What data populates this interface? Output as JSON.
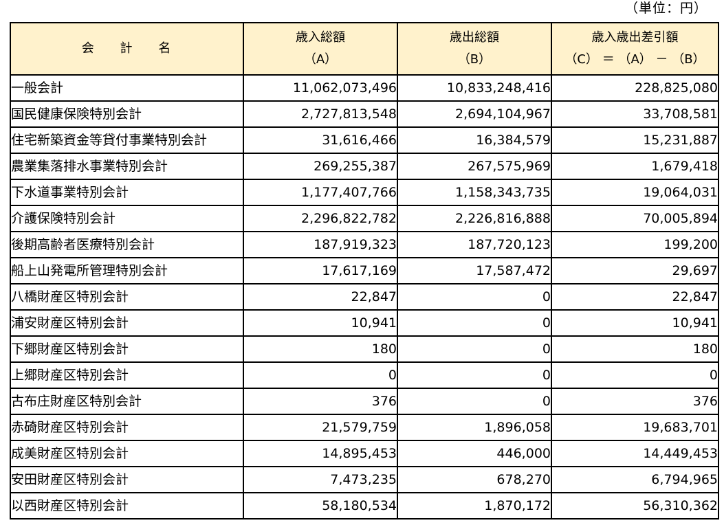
{
  "unit_note": "（単位：円）",
  "header": {
    "name": "会 計 名",
    "revenue_line1": "歳入総額",
    "revenue_line2": "（A）",
    "expenditure_line1": "歳出総額",
    "expenditure_line2": "（B）",
    "balance_line1": "歳入歳出差引額",
    "balance_line2": "（C） ＝ （A） － （B）"
  },
  "rows": [
    {
      "name": "一般会計",
      "revenue": "11,062,073,496",
      "expenditure": "10,833,248,416",
      "balance": "228,825,080"
    },
    {
      "name": "国民健康保険特別会計",
      "revenue": "2,727,813,548",
      "expenditure": "2,694,104,967",
      "balance": "33,708,581"
    },
    {
      "name": "住宅新築資金等貸付事業特別会計",
      "revenue": "31,616,466",
      "expenditure": "16,384,579",
      "balance": "15,231,887"
    },
    {
      "name": "農業集落排水事業特別会計",
      "revenue": "269,255,387",
      "expenditure": "267,575,969",
      "balance": "1,679,418"
    },
    {
      "name": "下水道事業特別会計",
      "revenue": "1,177,407,766",
      "expenditure": "1,158,343,735",
      "balance": "19,064,031"
    },
    {
      "name": "介護保険特別会計",
      "revenue": "2,296,822,782",
      "expenditure": "2,226,816,888",
      "balance": "70,005,894"
    },
    {
      "name": "後期高齢者医療特別会計",
      "revenue": "187,919,323",
      "expenditure": "187,720,123",
      "balance": "199,200"
    },
    {
      "name": "船上山発電所管理特別会計",
      "revenue": "17,617,169",
      "expenditure": "17,587,472",
      "balance": "29,697"
    },
    {
      "name": "八橋財産区特別会計",
      "revenue": "22,847",
      "expenditure": "0",
      "balance": "22,847"
    },
    {
      "name": "浦安財産区特別会計",
      "revenue": "10,941",
      "expenditure": "0",
      "balance": "10,941"
    },
    {
      "name": "下郷財産区特別会計",
      "revenue": "180",
      "expenditure": "0",
      "balance": "180"
    },
    {
      "name": "上郷財産区特別会計",
      "revenue": "0",
      "expenditure": "0",
      "balance": "0"
    },
    {
      "name": "古布庄財産区特別会計",
      "revenue": "376",
      "expenditure": "0",
      "balance": "376"
    },
    {
      "name": "赤碕財産区特別会計",
      "revenue": "21,579,759",
      "expenditure": "1,896,058",
      "balance": "19,683,701"
    },
    {
      "name": "成美財産区特別会計",
      "revenue": "14,895,453",
      "expenditure": "446,000",
      "balance": "14,449,453"
    },
    {
      "name": "安田財産区特別会計",
      "revenue": "7,473,235",
      "expenditure": "678,270",
      "balance": "6,794,965"
    },
    {
      "name": "以西財産区特別会計",
      "revenue": "58,180,534",
      "expenditure": "1,870,172",
      "balance": "56,310,362"
    }
  ],
  "colors": {
    "header_background": "#fff2cc",
    "border": "#000000"
  }
}
